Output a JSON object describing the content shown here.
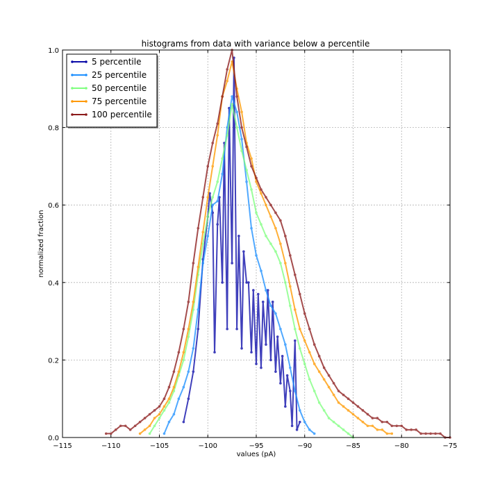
{
  "chart_data": {
    "type": "line",
    "title": "histograms from data with variance below a percentile",
    "xlabel": "values (pA)",
    "ylabel": "normalized fraction",
    "xlim": [
      -115,
      -75
    ],
    "ylim": [
      0.0,
      1.0
    ],
    "xticks": [
      -115,
      -110,
      -105,
      -100,
      -95,
      -90,
      -85,
      -80,
      -75
    ],
    "xtick_labels": [
      "−115",
      "−110",
      "−105",
      "−100",
      "−95",
      "−90",
      "−85",
      "−80",
      "−75"
    ],
    "yticks": [
      0.0,
      0.2,
      0.4,
      0.6,
      0.8,
      1.0
    ],
    "ytick_labels": [
      "0.0",
      "0.2",
      "0.4",
      "0.6",
      "0.8",
      "1.0"
    ],
    "grid": true,
    "legend_position": "top-left",
    "series": [
      {
        "name": " 5 percentile",
        "color": "#0a0aa8",
        "x": [
          -102.5,
          -102.0,
          -101.5,
          -101.0,
          -100.5,
          -100.0,
          -99.8,
          -99.5,
          -99.3,
          -99.0,
          -98.8,
          -98.5,
          -98.3,
          -98.0,
          -97.8,
          -97.5,
          -97.3,
          -97.0,
          -96.8,
          -96.5,
          -96.3,
          -96.0,
          -95.8,
          -95.5,
          -95.3,
          -95.0,
          -94.8,
          -94.5,
          -94.3,
          -94.0,
          -93.8,
          -93.5,
          -93.3,
          -93.0,
          -92.8,
          -92.5,
          -92.3,
          -92.0,
          -91.8,
          -91.5,
          -91.3,
          -91.0,
          -90.8,
          -90.5
        ],
        "y": [
          0.04,
          0.1,
          0.17,
          0.28,
          0.46,
          0.57,
          0.63,
          0.58,
          0.22,
          0.55,
          0.62,
          0.4,
          0.76,
          0.28,
          0.85,
          0.45,
          0.98,
          0.28,
          0.52,
          0.23,
          0.48,
          0.4,
          0.4,
          0.22,
          0.38,
          0.19,
          0.37,
          0.18,
          0.35,
          0.24,
          0.38,
          0.2,
          0.35,
          0.17,
          0.26,
          0.14,
          0.21,
          0.08,
          0.16,
          0.12,
          0.03,
          0.25,
          0.02,
          0.04
        ]
      },
      {
        "name": "25 percentile",
        "color": "#1e90ff",
        "x": [
          -104.5,
          -104.0,
          -103.5,
          -103.0,
          -102.5,
          -102.0,
          -101.5,
          -101.0,
          -100.5,
          -100.0,
          -99.5,
          -99.0,
          -98.5,
          -98.0,
          -97.5,
          -97.0,
          -96.5,
          -96.0,
          -95.5,
          -95.0,
          -94.5,
          -94.0,
          -93.5,
          -93.0,
          -92.5,
          -92.0,
          -91.5,
          -91.0,
          -90.5,
          -90.0,
          -89.5,
          -89.0
        ],
        "y": [
          0.01,
          0.04,
          0.06,
          0.1,
          0.13,
          0.17,
          0.23,
          0.33,
          0.45,
          0.52,
          0.6,
          0.61,
          0.68,
          0.8,
          0.88,
          0.84,
          0.77,
          0.66,
          0.54,
          0.47,
          0.43,
          0.38,
          0.34,
          0.32,
          0.28,
          0.24,
          0.18,
          0.12,
          0.07,
          0.04,
          0.02,
          0.01
        ]
      },
      {
        "name": "50 percentile",
        "color": "#7fff7f",
        "x": [
          -106.0,
          -105.5,
          -105.0,
          -104.5,
          -104.0,
          -103.5,
          -103.0,
          -102.5,
          -102.0,
          -101.5,
          -101.0,
          -100.5,
          -100.0,
          -99.5,
          -99.0,
          -98.5,
          -98.0,
          -97.5,
          -97.0,
          -96.5,
          -96.0,
          -95.5,
          -95.0,
          -94.5,
          -94.0,
          -93.5,
          -93.0,
          -92.5,
          -92.0,
          -91.5,
          -91.0,
          -90.5,
          -90.0,
          -89.5,
          -89.0,
          -88.5,
          -88.0,
          -87.5,
          -87.0,
          -86.5,
          -86.0,
          -85.5,
          -85.0
        ],
        "y": [
          0.01,
          0.03,
          0.05,
          0.07,
          0.09,
          0.12,
          0.16,
          0.2,
          0.26,
          0.33,
          0.42,
          0.5,
          0.57,
          0.62,
          0.66,
          0.72,
          0.78,
          0.86,
          0.8,
          0.74,
          0.69,
          0.64,
          0.58,
          0.55,
          0.52,
          0.5,
          0.48,
          0.45,
          0.4,
          0.34,
          0.28,
          0.23,
          0.19,
          0.15,
          0.12,
          0.09,
          0.07,
          0.05,
          0.04,
          0.03,
          0.02,
          0.01,
          0.0
        ]
      },
      {
        "name": "75 percentile",
        "color": "#ff9900",
        "x": [
          -107.0,
          -106.5,
          -106.0,
          -105.5,
          -105.0,
          -104.5,
          -104.0,
          -103.5,
          -103.0,
          -102.5,
          -102.0,
          -101.5,
          -101.0,
          -100.5,
          -100.0,
          -99.5,
          -99.0,
          -98.5,
          -98.0,
          -97.5,
          -97.0,
          -96.5,
          -96.0,
          -95.5,
          -95.0,
          -94.5,
          -94.0,
          -93.5,
          -93.0,
          -92.5,
          -92.0,
          -91.5,
          -91.0,
          -90.5,
          -90.0,
          -89.5,
          -89.0,
          -88.5,
          -88.0,
          -87.5,
          -87.0,
          -86.5,
          -86.0,
          -85.5,
          -85.0,
          -84.5,
          -84.0,
          -83.5,
          -83.0,
          -82.5,
          -82.0,
          -81.5,
          -81.0
        ],
        "y": [
          0.01,
          0.02,
          0.03,
          0.05,
          0.06,
          0.08,
          0.1,
          0.13,
          0.17,
          0.22,
          0.28,
          0.35,
          0.44,
          0.53,
          0.62,
          0.7,
          0.78,
          0.88,
          0.92,
          0.97,
          0.9,
          0.84,
          0.76,
          0.72,
          0.66,
          0.63,
          0.6,
          0.57,
          0.54,
          0.5,
          0.45,
          0.39,
          0.33,
          0.28,
          0.25,
          0.22,
          0.19,
          0.17,
          0.15,
          0.13,
          0.11,
          0.09,
          0.08,
          0.07,
          0.06,
          0.05,
          0.04,
          0.03,
          0.03,
          0.02,
          0.02,
          0.01,
          0.01
        ]
      },
      {
        "name": "100 percentile",
        "color": "#8b1a1a",
        "x": [
          -110.5,
          -110.0,
          -109.5,
          -109.0,
          -108.5,
          -108.0,
          -107.5,
          -107.0,
          -106.5,
          -106.0,
          -105.5,
          -105.0,
          -104.5,
          -104.0,
          -103.5,
          -103.0,
          -102.5,
          -102.0,
          -101.5,
          -101.0,
          -100.5,
          -100.0,
          -99.5,
          -99.0,
          -98.5,
          -98.0,
          -97.5,
          -97.0,
          -96.5,
          -96.0,
          -95.5,
          -95.0,
          -94.5,
          -94.0,
          -93.5,
          -93.0,
          -92.5,
          -92.0,
          -91.5,
          -91.0,
          -90.5,
          -90.0,
          -89.5,
          -89.0,
          -88.5,
          -88.0,
          -87.5,
          -87.0,
          -86.5,
          -86.0,
          -85.5,
          -85.0,
          -84.5,
          -84.0,
          -83.5,
          -83.0,
          -82.5,
          -82.0,
          -81.5,
          -81.0,
          -80.5,
          -80.0,
          -79.5,
          -79.0,
          -78.5,
          -78.0,
          -77.5,
          -77.0,
          -76.5,
          -76.0,
          -75.5,
          -75.0
        ],
        "y": [
          0.01,
          0.01,
          0.02,
          0.03,
          0.03,
          0.02,
          0.03,
          0.04,
          0.05,
          0.06,
          0.07,
          0.08,
          0.1,
          0.13,
          0.17,
          0.22,
          0.28,
          0.35,
          0.45,
          0.54,
          0.62,
          0.7,
          0.76,
          0.81,
          0.88,
          0.95,
          1.0,
          0.88,
          0.8,
          0.75,
          0.7,
          0.67,
          0.64,
          0.62,
          0.6,
          0.58,
          0.56,
          0.52,
          0.47,
          0.42,
          0.37,
          0.32,
          0.28,
          0.24,
          0.21,
          0.18,
          0.16,
          0.14,
          0.12,
          0.11,
          0.1,
          0.09,
          0.08,
          0.07,
          0.06,
          0.05,
          0.05,
          0.04,
          0.04,
          0.03,
          0.03,
          0.03,
          0.02,
          0.02,
          0.02,
          0.01,
          0.01,
          0.01,
          0.01,
          0.01,
          0.0,
          0.0
        ]
      }
    ]
  }
}
